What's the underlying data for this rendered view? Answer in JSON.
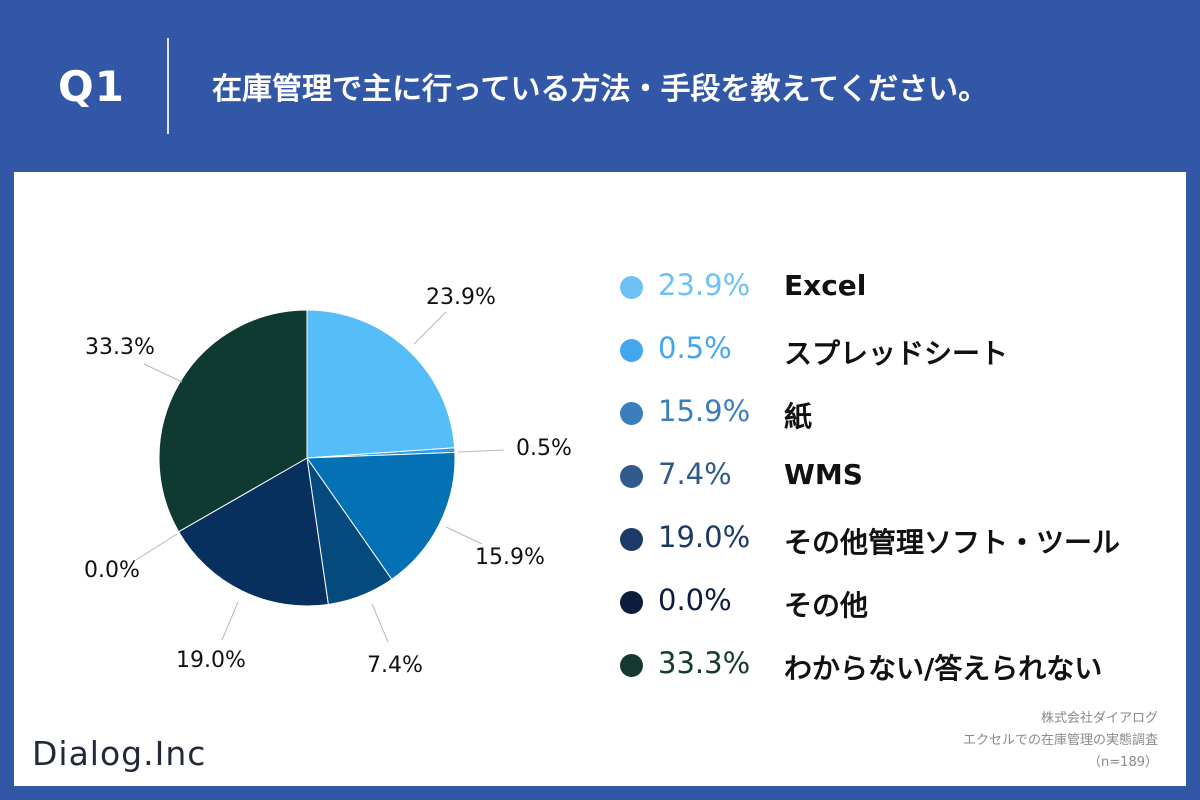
{
  "header": {
    "question_number": "Q1",
    "question_text": "在庫管理で主に行っている方法・手段を教えてください。"
  },
  "chart_data": {
    "type": "pie",
    "title": "在庫管理で主に行っている方法・手段を教えてください。",
    "slices": [
      {
        "label": "Excel",
        "value": 23.9,
        "display": "23.9%",
        "color": "#55bdf8"
      },
      {
        "label": "スプレッドシート",
        "value": 0.5,
        "display": "0.5%",
        "color": "#2e9be9"
      },
      {
        "label": "紙",
        "value": 15.9,
        "display": "15.9%",
        "color": "#0371b4"
      },
      {
        "label": "WMS",
        "value": 7.4,
        "display": "7.4%",
        "color": "#044a7c"
      },
      {
        "label": "その他管理ソフト・ツール",
        "value": 19.0,
        "display": "19.0%",
        "color": "#08305e"
      },
      {
        "label": "その他",
        "value": 0.0,
        "display": "0.0%",
        "color": "#0b1b3b"
      },
      {
        "label": "わからない/答えられない",
        "value": 33.3,
        "display": "33.3%",
        "color": "#0f3a31"
      }
    ],
    "legend_placement": "right"
  },
  "legend_colors": {
    "Excel": "#6dc2f5",
    "スプレッドシート": "#44a6ee",
    "紙": "#3a7ebd",
    "WMS": "#2f5a8a",
    "その他管理ソフト・ツール": "#1c3a68",
    "その他": "#0c1c3c",
    "わからない/答えられない": "#15392f"
  },
  "footer": {
    "logo": "Dialog.Inc",
    "company": "株式会社ダイアログ",
    "survey": "エクセルでの在庫管理の実態調査",
    "sample": "（n=189）"
  }
}
